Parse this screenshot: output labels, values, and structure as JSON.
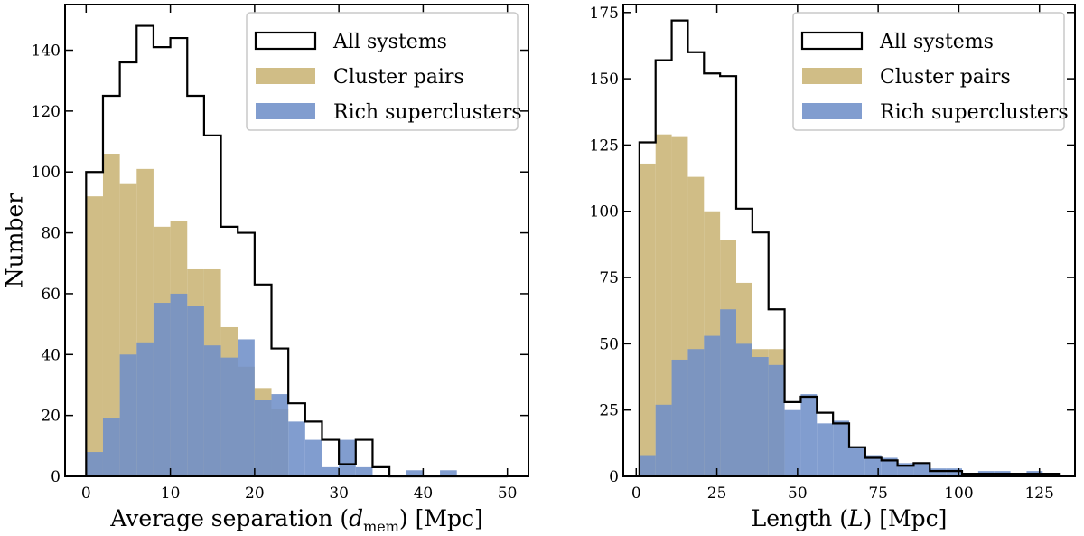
{
  "figure": {
    "ylabel": "Number"
  },
  "chart_data": [
    {
      "type": "histogram",
      "title": "",
      "xlabel": "Average separation (d_mem) [Mpc]",
      "xlabel_prefix": "Average separation (",
      "xlabel_var": "d",
      "xlabel_sub": "mem",
      "xlabel_suffix": ") [Mpc]",
      "ylabel": "Number",
      "xlim": [
        -2.5,
        52.5
      ],
      "ylim": [
        0,
        155
      ],
      "xticks": [
        0,
        10,
        20,
        30,
        40,
        50
      ],
      "yticks": [
        0,
        20,
        40,
        60,
        80,
        100,
        120,
        140
      ],
      "bin_edges": [
        0,
        2,
        4,
        6,
        8,
        10,
        12,
        14,
        16,
        18,
        20,
        22,
        24,
        26,
        28,
        30,
        32,
        34,
        36,
        38,
        40,
        42,
        44,
        46,
        48,
        50
      ],
      "legend": {
        "position": "top-right",
        "entries": [
          "All systems",
          "Cluster pairs",
          "Rich superclusters"
        ]
      },
      "series": [
        {
          "name": "All systems",
          "style": "step",
          "color": "#000000",
          "values": [
            100,
            125,
            136,
            148,
            141,
            144,
            125,
            112,
            82,
            80,
            63,
            42,
            24,
            18,
            12,
            4,
            12,
            3,
            0,
            0,
            0,
            0,
            0,
            0,
            0
          ]
        },
        {
          "name": "Cluster pairs",
          "style": "fill",
          "color": "#c9b475",
          "values": [
            92,
            106,
            96,
            101,
            82,
            84,
            68,
            68,
            49,
            36,
            29,
            22,
            0,
            0,
            0,
            0,
            0,
            0,
            0,
            0,
            0,
            0,
            0,
            0,
            0
          ]
        },
        {
          "name": "Rich superclusters",
          "style": "fill",
          "color": "#6f8fc8",
          "values": [
            8,
            19,
            40,
            44,
            57,
            60,
            56,
            43,
            39,
            45,
            25,
            27,
            18,
            12,
            3,
            12,
            3,
            0,
            0,
            2,
            0,
            2,
            0,
            0,
            0
          ]
        }
      ]
    },
    {
      "type": "histogram",
      "title": "",
      "xlabel": "Length (L) [Mpc]",
      "xlabel_prefix": "Length (",
      "xlabel_var": "L",
      "xlabel_sub": "",
      "xlabel_suffix": ") [Mpc]",
      "ylabel": "",
      "xlim": [
        -4,
        136
      ],
      "ylim": [
        0,
        178
      ],
      "xticks": [
        0,
        25,
        50,
        75,
        100,
        125
      ],
      "yticks": [
        0,
        25,
        50,
        75,
        100,
        125,
        150,
        175
      ],
      "bin_edges": [
        1,
        6,
        11,
        16,
        21,
        26,
        31,
        36,
        41,
        46,
        51,
        56,
        61,
        66,
        71,
        76,
        81,
        86,
        91,
        96,
        101,
        106,
        111,
        116,
        121,
        126,
        131
      ],
      "legend": {
        "position": "top-right",
        "entries": [
          "All systems",
          "Cluster pairs",
          "Rich superclusters"
        ]
      },
      "series": [
        {
          "name": "All systems",
          "style": "step",
          "color": "#000000",
          "values": [
            126,
            157,
            172,
            160,
            152,
            151,
            101,
            92,
            63,
            28,
            30,
            24,
            20,
            11,
            7,
            6,
            4,
            5,
            2,
            2,
            1,
            1,
            1,
            1,
            1,
            1
          ]
        },
        {
          "name": "Cluster pairs",
          "style": "fill",
          "color": "#c9b475",
          "values": [
            118,
            129,
            128,
            113,
            100,
            89,
            73,
            48,
            48,
            0,
            0,
            0,
            0,
            0,
            0,
            0,
            0,
            0,
            0,
            0,
            0,
            0,
            0,
            0,
            0,
            0
          ]
        },
        {
          "name": "Rich superclusters",
          "style": "fill",
          "color": "#6f8fc8",
          "values": [
            8,
            27,
            44,
            48,
            53,
            63,
            50,
            45,
            42,
            25,
            31,
            20,
            21,
            11,
            8,
            7,
            5,
            5,
            3,
            3,
            1,
            2,
            2,
            1,
            2,
            1
          ]
        }
      ]
    }
  ]
}
